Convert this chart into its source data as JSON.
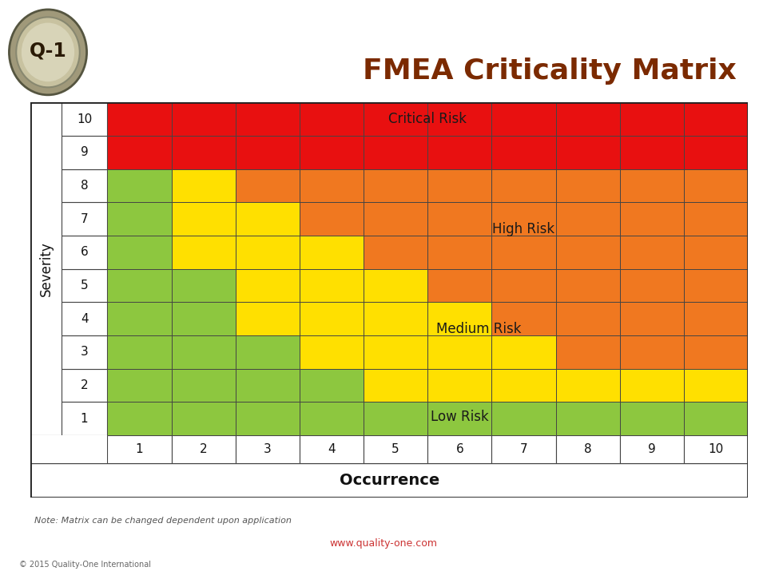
{
  "title": "FMEA Criticality Matrix",
  "title_color": "#7B2A00",
  "severity_label": "Severity",
  "occurrence_label": "Occurrence",
  "note_text": "Note: Matrix can be changed dependent upon application",
  "website_text": "www.quality-one.com",
  "copyright_text": "© 2015 Quality-One International",
  "colors": {
    "critical": "#E81010",
    "high": "#F07820",
    "medium": "#FFE000",
    "low": "#8DC73F",
    "grid_line": "#444444",
    "white": "#FFFFFF"
  },
  "risk_labels": {
    "critical": "Critical Risk",
    "high": "High Risk",
    "medium": "Medium Risk",
    "low": "Low Risk"
  },
  "header_bar_color": "#4A4A4A",
  "cell_colors": [
    [
      "G",
      "G",
      "G",
      "G",
      "G",
      "G",
      "G",
      "G",
      "G",
      "G"
    ],
    [
      "G",
      "G",
      "G",
      "G",
      "Y",
      "Y",
      "Y",
      "Y",
      "Y",
      "Y"
    ],
    [
      "G",
      "G",
      "G",
      "Y",
      "Y",
      "Y",
      "Y",
      "O",
      "O",
      "O"
    ],
    [
      "G",
      "G",
      "Y",
      "Y",
      "Y",
      "Y",
      "O",
      "O",
      "O",
      "O"
    ],
    [
      "G",
      "G",
      "Y",
      "Y",
      "Y",
      "O",
      "O",
      "O",
      "O",
      "O"
    ],
    [
      "G",
      "Y",
      "Y",
      "Y",
      "O",
      "O",
      "O",
      "O",
      "O",
      "O"
    ],
    [
      "G",
      "Y",
      "Y",
      "O",
      "O",
      "O",
      "O",
      "O",
      "O",
      "O"
    ],
    [
      "G",
      "Y",
      "O",
      "O",
      "O",
      "O",
      "O",
      "O",
      "O",
      "O"
    ],
    [
      "R",
      "R",
      "R",
      "R",
      "R",
      "R",
      "R",
      "R",
      "R",
      "R"
    ],
    [
      "R",
      "R",
      "R",
      "R",
      "R",
      "R",
      "R",
      "R",
      "R",
      "R"
    ]
  ],
  "severity_numbers": [
    "1",
    "2",
    "3",
    "4",
    "5",
    "6",
    "7",
    "8",
    "9",
    "10"
  ],
  "occurrence_numbers": [
    "1",
    "2",
    "3",
    "4",
    "5",
    "6",
    "7",
    "8",
    "9",
    "10"
  ]
}
